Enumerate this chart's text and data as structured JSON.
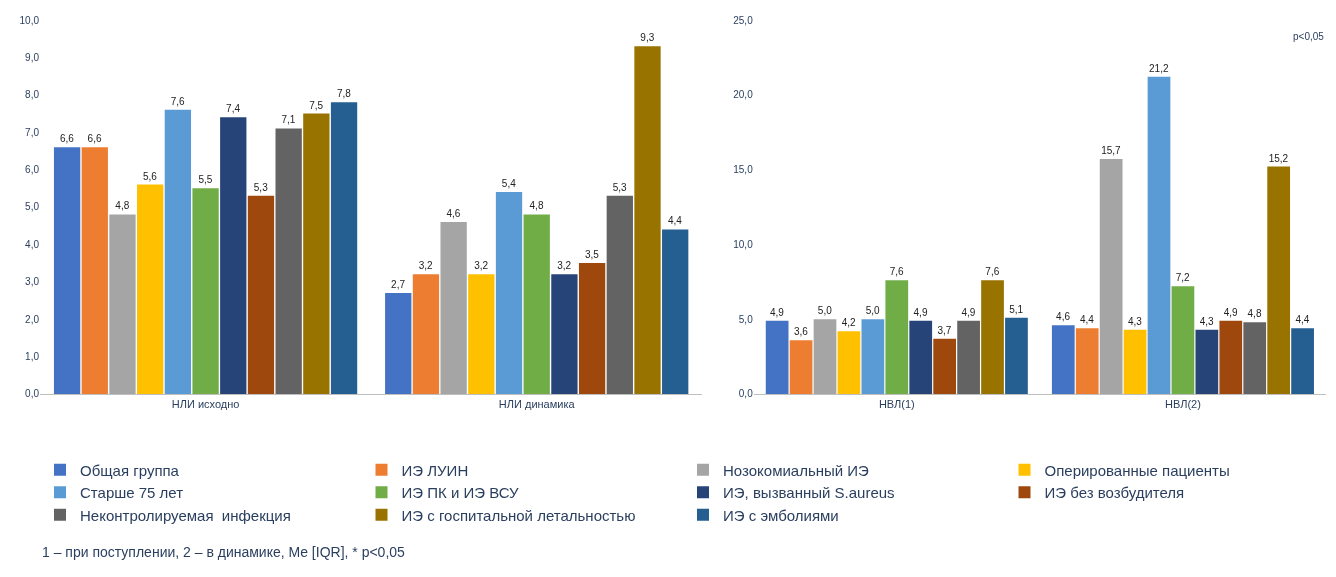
{
  "chart_data": [
    {
      "type": "bar",
      "categories": [
        "НЛИ исходно",
        "НЛИ динамика"
      ],
      "ylim": [
        0,
        10
      ],
      "yticks": [
        {
          "value": 0,
          "label": "0,0"
        },
        {
          "value": 1,
          "label": "1,0"
        },
        {
          "value": 2,
          "label": "2,0"
        },
        {
          "value": 3,
          "label": "3,0"
        },
        {
          "value": 4,
          "label": "4,0"
        },
        {
          "value": 5,
          "label": "5,0"
        },
        {
          "value": 6,
          "label": "6,0"
        },
        {
          "value": 7,
          "label": "7,0"
        },
        {
          "value": 8,
          "label": "8,0"
        },
        {
          "value": 9,
          "label": "9,0"
        },
        {
          "value": 10,
          "label": "10,0"
        }
      ],
      "legend": "bottom",
      "annotations": [
        "1 – при поступлении, 2 – в динамике, Me [IQR], * p<0,05"
      ],
      "series": [
        {
          "name": "Общая группа",
          "color": "#4472c4",
          "values": [
            6.6,
            2.7
          ],
          "value_labels": [
            "6,6",
            "2,7"
          ]
        },
        {
          "name": "ИЭ ЛУИН",
          "color": "#ed7d31",
          "values": [
            6.6,
            3.2
          ],
          "value_labels": [
            "6,6",
            "3,2"
          ]
        },
        {
          "name": "Нозокомиальный ИЭ",
          "color": "#a5a5a5",
          "values": [
            4.8,
            4.6
          ],
          "value_labels": [
            "4,8",
            "4,6"
          ]
        },
        {
          "name": "Оперированные пациенты",
          "color": "#ffc000",
          "values": [
            5.6,
            3.2
          ],
          "value_labels": [
            "5,6",
            "3,2"
          ]
        },
        {
          "name": "Старше 75 лет",
          "color": "#5b9bd5",
          "values": [
            7.6,
            5.4
          ],
          "value_labels": [
            "7,6",
            "5,4"
          ]
        },
        {
          "name": "ИЭ ПК и ИЭ ВСУ",
          "color": "#70ad47",
          "values": [
            5.5,
            4.8
          ],
          "value_labels": [
            "5,5",
            "4,8"
          ]
        },
        {
          "name": "ИЭ, вызванный S.aureus",
          "color": "#264478",
          "values": [
            7.4,
            3.2
          ],
          "value_labels": [
            "7,4",
            "3,2"
          ]
        },
        {
          "name": "ИЭ без возбудителя",
          "color": "#9e480e",
          "values": [
            5.3,
            3.5
          ],
          "value_labels": [
            "5,3",
            "3,5"
          ]
        },
        {
          "name": "Неконтролируемая  инфекция",
          "color": "#636363",
          "values": [
            7.1,
            5.3
          ],
          "value_labels": [
            "7,1",
            "5,3"
          ]
        },
        {
          "name": "ИЭ с госпитальной летальностью",
          "color": "#997300",
          "values": [
            7.5,
            9.3
          ],
          "value_labels": [
            "7,5",
            "9,3"
          ]
        },
        {
          "name": "ИЭ с эмболиями",
          "color": "#255e91",
          "values": [
            7.8,
            4.4
          ],
          "value_labels": [
            "7,8",
            "4,4"
          ]
        }
      ]
    },
    {
      "type": "bar",
      "categories": [
        "НВЛ(1)",
        "НВЛ(2)"
      ],
      "ylim": [
        0,
        25
      ],
      "yticks": [
        {
          "value": 0,
          "label": "0,0"
        },
        {
          "value": 5,
          "label": "5,0"
        },
        {
          "value": 10,
          "label": "10,0"
        },
        {
          "value": 15,
          "label": "15,0"
        },
        {
          "value": 20,
          "label": "20,0"
        },
        {
          "value": 25,
          "label": "25,0"
        }
      ],
      "annotations": [
        "p<0,05"
      ],
      "series": [
        {
          "color": "#4472c4",
          "values": [
            4.9,
            4.6
          ],
          "value_labels": [
            "4,9",
            "4,6"
          ]
        },
        {
          "color": "#ed7d31",
          "values": [
            3.6,
            4.4
          ],
          "value_labels": [
            "3,6",
            "4,4"
          ]
        },
        {
          "color": "#a5a5a5",
          "values": [
            5.0,
            15.7
          ],
          "value_labels": [
            "5,0",
            "15,7"
          ]
        },
        {
          "color": "#ffc000",
          "values": [
            4.2,
            4.3
          ],
          "value_labels": [
            "4,2",
            "4,3"
          ]
        },
        {
          "color": "#5b9bd5",
          "values": [
            5.0,
            21.2
          ],
          "value_labels": [
            "5,0",
            "21,2"
          ]
        },
        {
          "color": "#70ad47",
          "values": [
            7.6,
            7.2
          ],
          "value_labels": [
            "7,6",
            "7,2"
          ]
        },
        {
          "color": "#264478",
          "values": [
            4.9,
            4.3
          ],
          "value_labels": [
            "4,9",
            "4,3"
          ]
        },
        {
          "color": "#9e480e",
          "values": [
            3.7,
            4.9
          ],
          "value_labels": [
            "3,7",
            "4,9"
          ]
        },
        {
          "color": "#636363",
          "values": [
            4.9,
            4.8
          ],
          "value_labels": [
            "4,9",
            "4,8"
          ]
        },
        {
          "color": "#997300",
          "values": [
            7.6,
            15.2
          ],
          "value_labels": [
            "7,6",
            "15,2"
          ]
        },
        {
          "color": "#255e91",
          "values": [
            5.1,
            4.4
          ],
          "value_labels": [
            "5,1",
            "4,4"
          ]
        }
      ]
    }
  ]
}
